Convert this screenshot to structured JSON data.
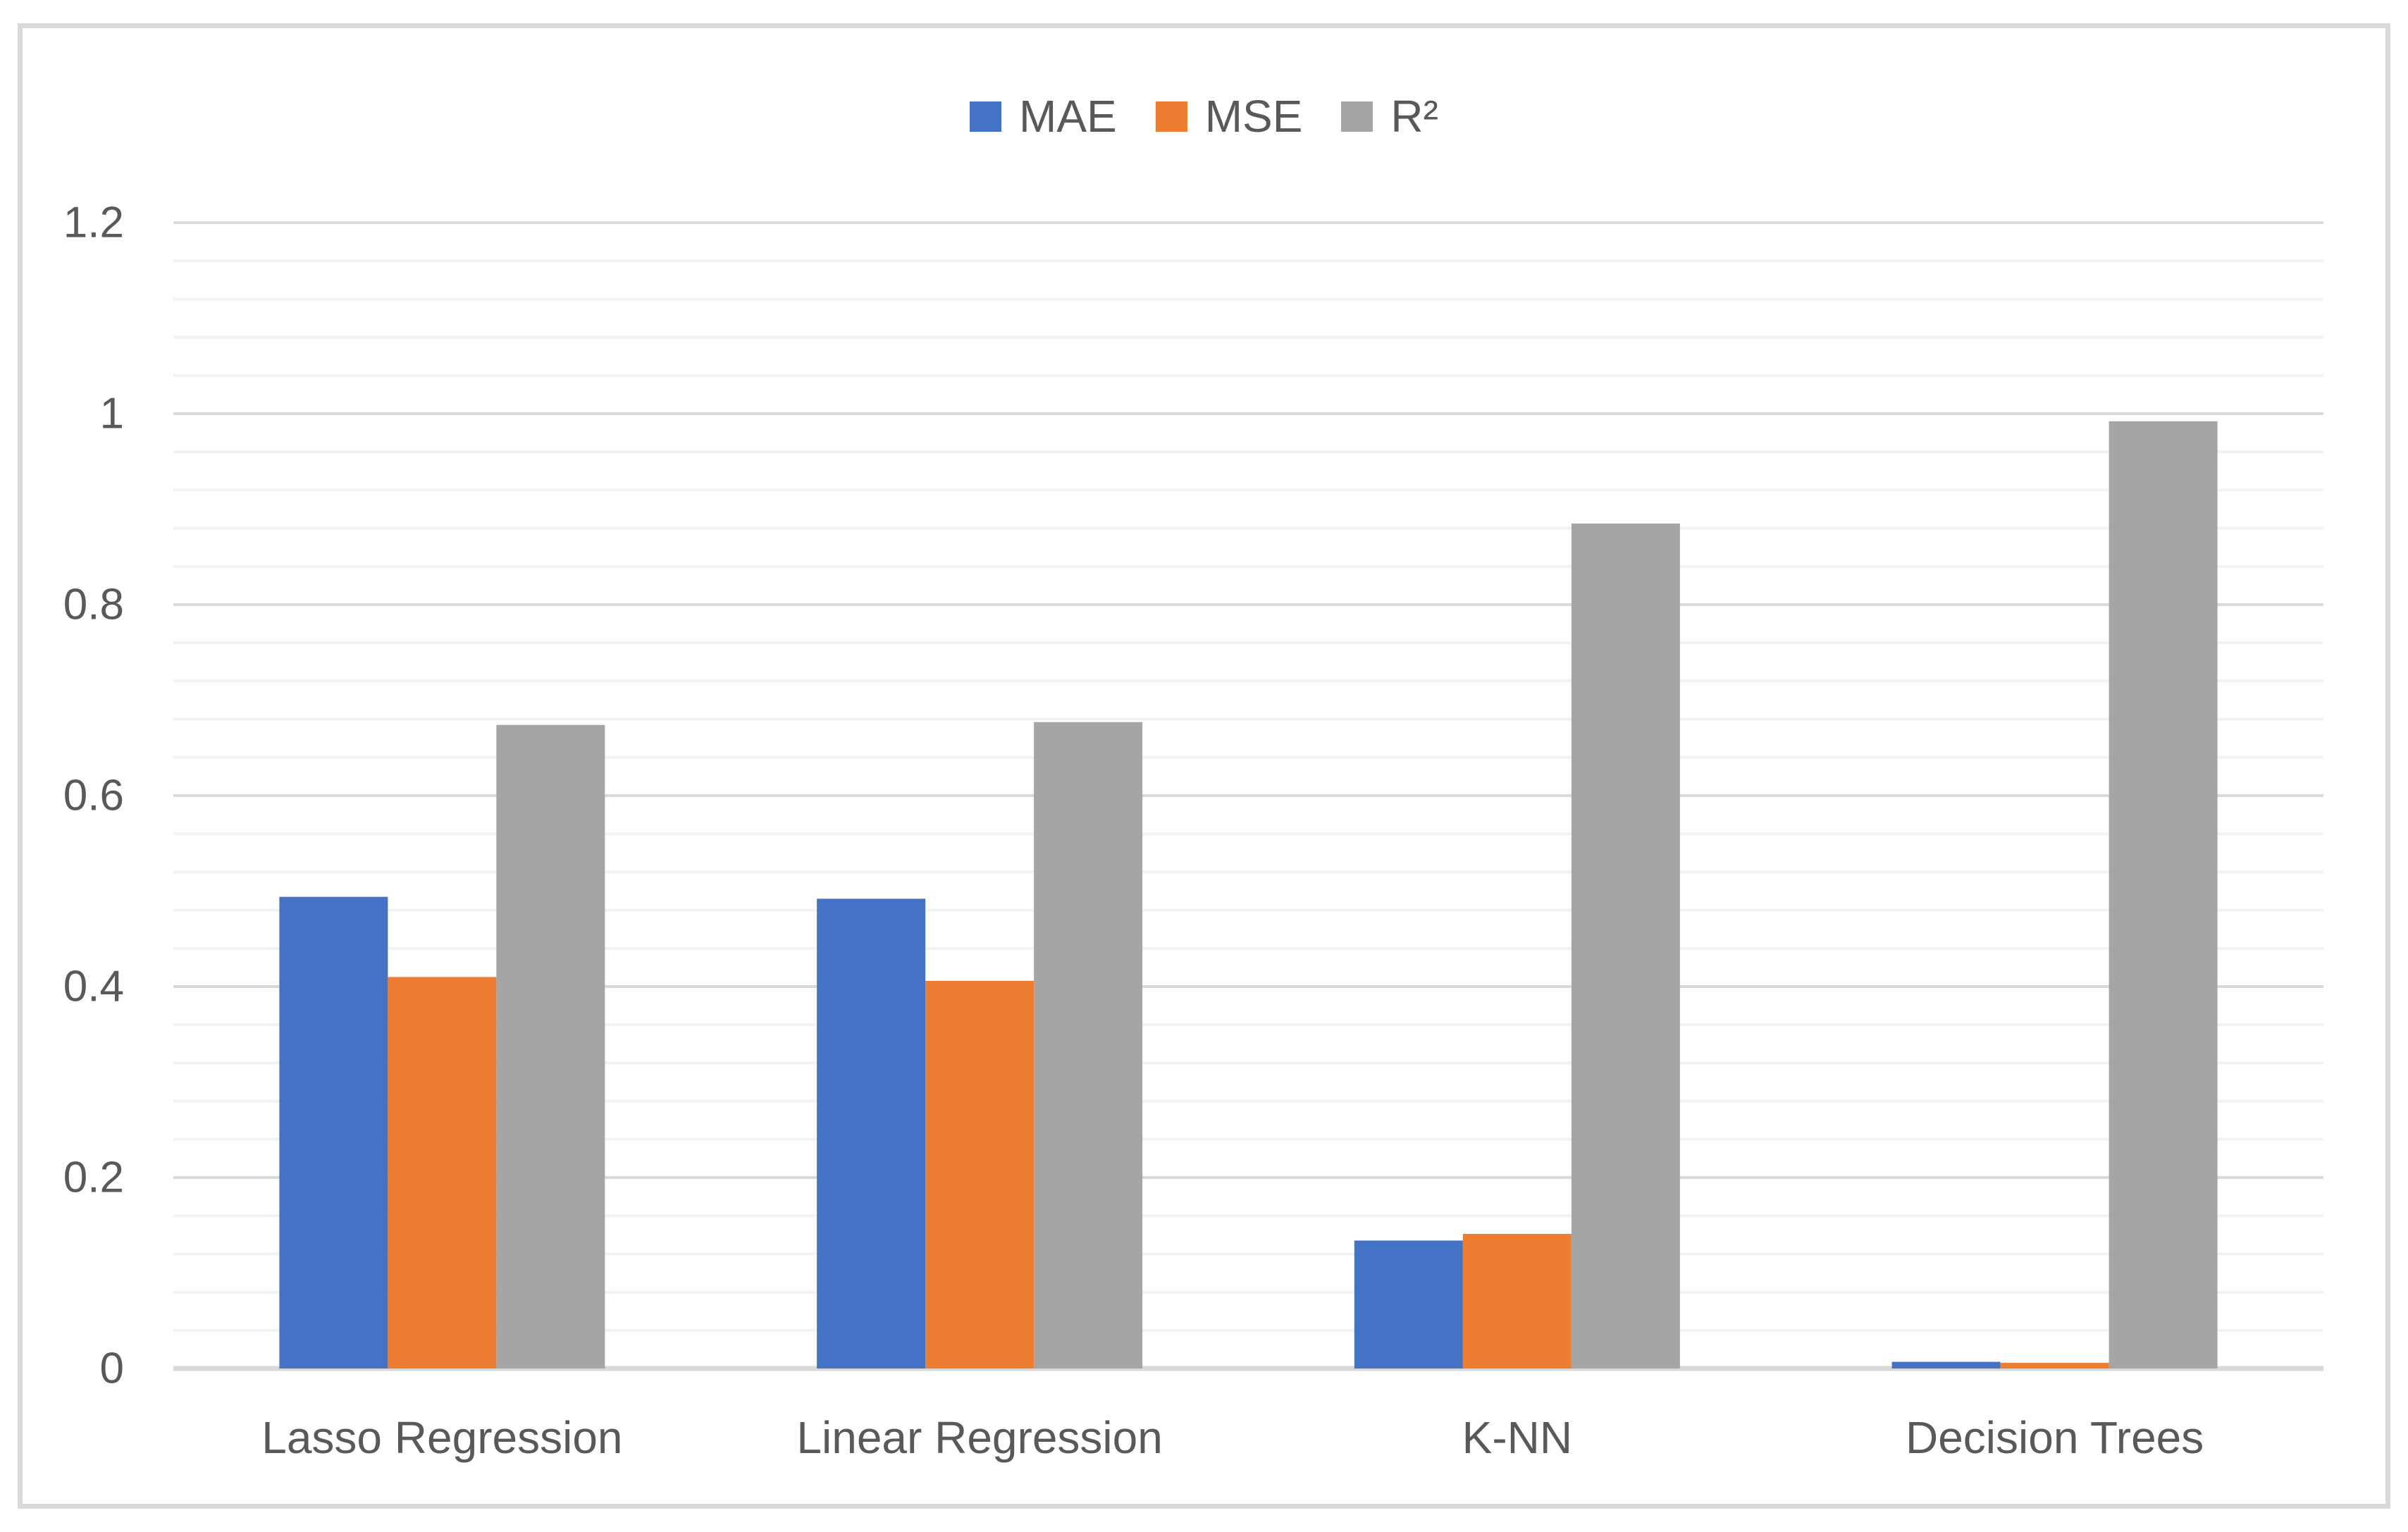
{
  "chart_data": {
    "type": "bar",
    "title": "",
    "xlabel": "",
    "ylabel": "",
    "categories": [
      "Lasso Regression",
      "Linear Regression",
      "K-NN",
      "Decision Trees"
    ],
    "series": [
      {
        "name": "MAE",
        "color": "#4472C4",
        "values": [
          0.494,
          0.492,
          0.134,
          0.007
        ]
      },
      {
        "name": "MSE",
        "color": "#ED7D31",
        "values": [
          0.41,
          0.406,
          0.141,
          0.006
        ]
      },
      {
        "name": "R²",
        "color": "#A5A5A5",
        "values": [
          0.674,
          0.677,
          0.885,
          0.992
        ]
      }
    ],
    "ylim": [
      0,
      1.2
    ],
    "y_major_tick": 0.2,
    "y_minor_tick": 0.04,
    "y_tick_labels": [
      "0",
      "0.2",
      "0.4",
      "0.6",
      "0.8",
      "1",
      "1.2"
    ],
    "grid": true,
    "legend_position": "top-center"
  },
  "style_colors": {
    "major_gridline": "#D9D9D9",
    "minor_gridline": "#F2F2F2",
    "axis_line": "#D9D9D9",
    "tick_text": "#595959",
    "frame_border": "#D9D9D9",
    "background": "#FFFFFF"
  }
}
